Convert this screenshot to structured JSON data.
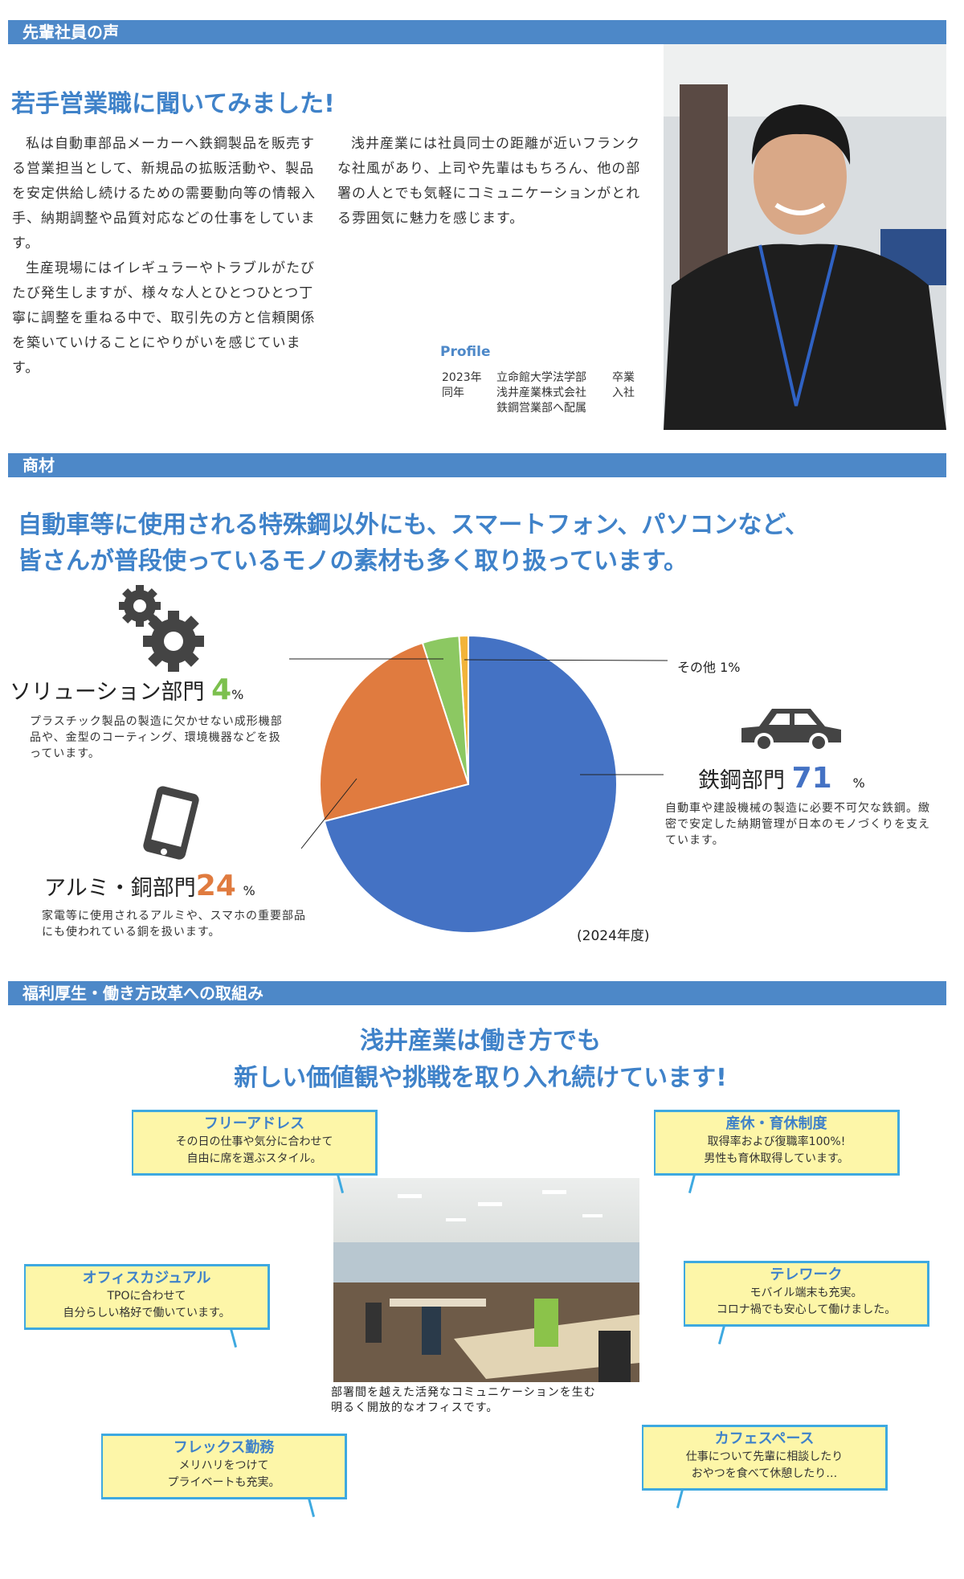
{
  "section1": {
    "header": "先輩社員の声",
    "title": "若手営業職に聞いてみました!",
    "col1_p1": "私は自動車部品メーカーへ鉄鋼製品を販売する営業担当として、新規品の拡販活動や、製品を安定供給し続けるための需要動向等の情報入手、納期調整や品質対応などの仕事をしています。",
    "col1_p2": "生産現場にはイレギュラーやトラブルがたびたび発生しますが、様々な人とひとつひとつ丁寧に調整を重ねる中で、取引先の方と信頼関係を築いていけることにやりがいを感じています。",
    "col2_p1": "浅井産業には社員同士の距離が近いフランクな社風があり、上司や先輩はもちろん、他の部署の人とでも気軽にコミュニケーションがとれる雰囲気に魅力を感じます。",
    "profile": {
      "label": "Profile",
      "rows": [
        {
          "year": "2023年",
          "text": "立命館大学法学部",
          "status": "卒業"
        },
        {
          "year": "同年",
          "text": "浅井産業株式会社",
          "status": "入社"
        },
        {
          "year": "",
          "text": "鉄鋼営業部へ配属",
          "status": ""
        }
      ]
    }
  },
  "section2": {
    "header": "商材",
    "headline1": "自動車等に使用される特殊鋼以外にも、スマートフォン、パソコンなど、",
    "headline2": "皆さんが普段使っているモノの素材も多く取り扱っています。",
    "solution": {
      "name": "ソリューション部門",
      "value": "4",
      "unit": "%",
      "desc": "プラスチック製品の製造に欠かせない成形機部品や、金型のコーティング、環境機器などを扱っています。"
    },
    "aluminum": {
      "name": "アルミ・銅部門",
      "value": "24",
      "unit": "%",
      "desc": "家電等に使用されるアルミや、スマホの重要部品にも使われている銅を扱います。"
    },
    "steel": {
      "name": "鉄鋼部門",
      "value": "71",
      "unit": "%",
      "desc": "自動車や建設機械の製造に必要不可欠な鉄鋼。緻密で安定した納期管理が日本のモノづくりを支えています。"
    },
    "other": {
      "label": "その他 1%"
    },
    "year_note": "(2024年度)"
  },
  "chart_data": {
    "type": "pie",
    "categories": [
      "鉄鋼部門",
      "アルミ・銅部門",
      "ソリューション部門",
      "その他"
    ],
    "values": [
      71,
      24,
      4,
      1
    ],
    "colors": [
      "#4472c4",
      "#e07b3f",
      "#8cc862",
      "#f2b43a"
    ],
    "start": "top, clockwise",
    "note": "(2024年度)"
  },
  "section3": {
    "header": "福利厚生・働き方改革への取組み",
    "headline1": "浅井産業は働き方でも",
    "headline2": "新しい価値観や挑戦を取り入れ続けています!",
    "photo_caption1": "部署間を越えた活発なコミュニケーションを生む",
    "photo_caption2": "明るく開放的なオフィスです。",
    "bubbles": [
      {
        "title": "フリーアドレス",
        "l1": "その日の仕事や気分に合わせて",
        "l2": "自由に席を選ぶスタイル。"
      },
      {
        "title": "産休・育休制度",
        "l1": "取得率および復職率100%!",
        "l2": "男性も育休取得しています。"
      },
      {
        "title": "オフィスカジュアル",
        "l1": "TPOに合わせて",
        "l2": "自分らしい格好で働いています。"
      },
      {
        "title": "テレワーク",
        "l1": "モバイル端末も充実。",
        "l2": "コロナ禍でも安心して働けました。"
      },
      {
        "title": "フレックス勤務",
        "l1": "メリハリをつけて",
        "l2": "プライベートも充実。"
      },
      {
        "title": "カフェスペース",
        "l1": "仕事について先輩に相談したり",
        "l2": "おやつを食べて休憩したり…"
      }
    ]
  }
}
